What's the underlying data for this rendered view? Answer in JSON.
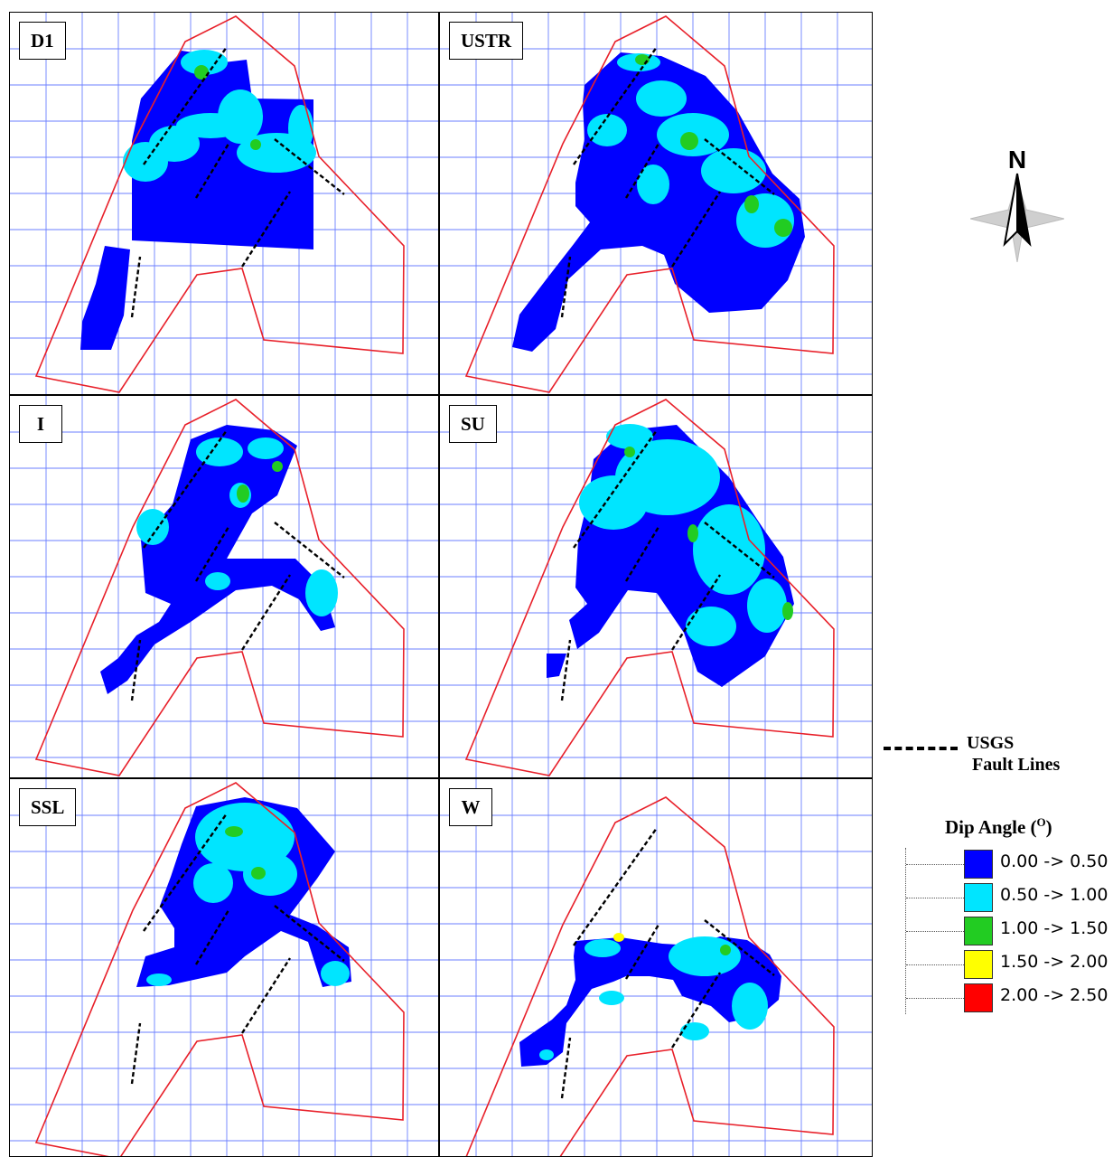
{
  "panels": [
    {
      "label": "D1"
    },
    {
      "label": "USTR"
    },
    {
      "label": "I"
    },
    {
      "label": "SU"
    },
    {
      "label": "SSL"
    },
    {
      "label": "W"
    }
  ],
  "north_arrow": {
    "letter": "N",
    "icon": "north-arrow-icon"
  },
  "legend": {
    "fault_lines_line1": "USGS",
    "fault_lines_line2": "Fault Lines",
    "dip_title": "Dip Angle (",
    "dip_unit": "O",
    "dip_title_end": ")",
    "items": [
      {
        "range": "0.00 -> 0.50",
        "color": "#0000ff"
      },
      {
        "range": "0.50 -> 1.00",
        "color": "#00e5ff"
      },
      {
        "range": "1.00 -> 1.50",
        "color": "#22cc22"
      },
      {
        "range": "1.50 -> 2.00",
        "color": "#ffff00"
      },
      {
        "range": "2.00 -> 2.50",
        "color": "#ff0000"
      }
    ]
  },
  "colors": {
    "boundary": "#e8202a",
    "grid": "#6b7fff",
    "fault": "#000000",
    "dip_low": "#0000ff",
    "dip_mid": "#00e5ff",
    "dip_high": "#22cc22",
    "dip_higher": "#ffff00"
  }
}
